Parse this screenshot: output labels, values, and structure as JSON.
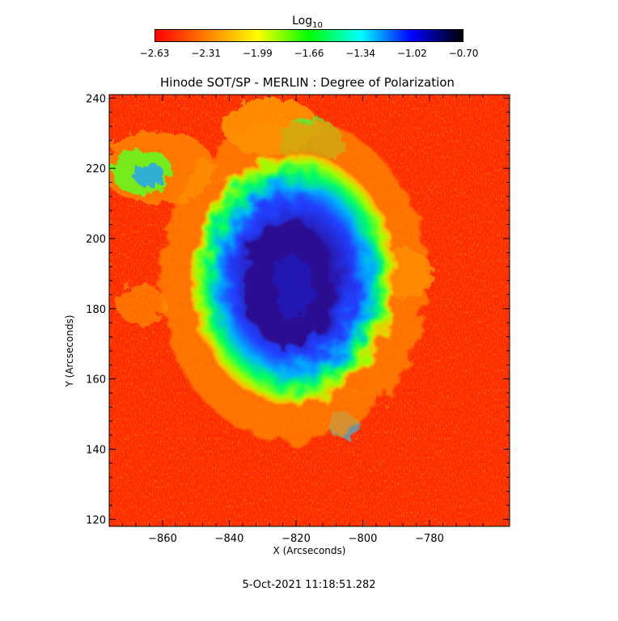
{
  "colorbar": {
    "title": "Log",
    "title_subscript": "10",
    "tick_labels": [
      "-2.63",
      "-2.31",
      "-1.99",
      "-1.66",
      "-1.34",
      "-1.02",
      "-0.70"
    ],
    "colors": [
      "#ff0000",
      "#ff8000",
      "#ffff00",
      "#00ff00",
      "#00ffff",
      "#0000ff",
      "#000000"
    ]
  },
  "plot": {
    "title": "Hinode SOT/SP - MERLIN : Degree of Polarization",
    "xlabel": "X (Arcseconds)",
    "ylabel": "Y (Arcseconds)",
    "x_ticks": [
      "-860",
      "-840",
      "-820",
      "-800",
      "-780"
    ],
    "y_ticks": [
      "120",
      "140",
      "160",
      "180",
      "200",
      "220",
      "240"
    ],
    "xlim": [
      -876,
      -756
    ],
    "ylim": [
      118,
      241
    ]
  },
  "timestamp": "5-Oct-2021 11:18:51.282"
}
